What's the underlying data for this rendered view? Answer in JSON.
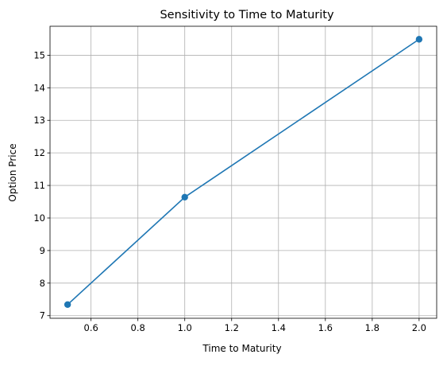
{
  "chart_data": {
    "type": "line",
    "title": "Sensitivity to Time to Maturity",
    "xlabel": "Time to Maturity",
    "ylabel": "Option Price",
    "xlim": [
      0.425,
      2.075
    ],
    "ylim": [
      6.92,
      15.89
    ],
    "x_ticks": [
      0.6,
      0.8,
      1.0,
      1.2,
      1.4,
      1.6,
      1.8,
      2.0
    ],
    "x_tick_labels": [
      "0.6",
      "0.8",
      "1.0",
      "1.2",
      "1.4",
      "1.6",
      "1.8",
      "2.0"
    ],
    "y_ticks": [
      7,
      8,
      9,
      10,
      11,
      12,
      13,
      14,
      15
    ],
    "y_tick_labels": [
      "7",
      "8",
      "9",
      "10",
      "11",
      "12",
      "13",
      "14",
      "15"
    ],
    "grid": true,
    "legend": "none",
    "series": [
      {
        "x": [
          0.5,
          1.0,
          2.0
        ],
        "y": [
          7.34,
          10.64,
          15.49
        ],
        "color": "#1f77b4",
        "marker": "circle"
      }
    ]
  }
}
